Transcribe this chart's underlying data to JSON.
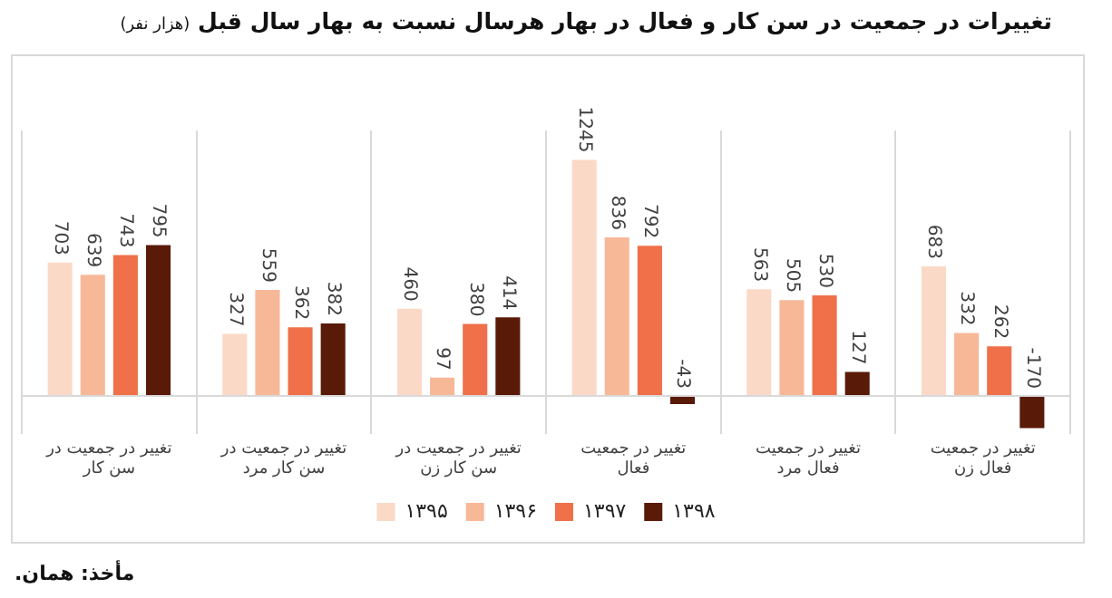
{
  "chart_data": {
    "type": "bar",
    "title": "تغییرات در جمعیت در سن کار و فعال در بهار هرسال نسبت به بهار سال قبل",
    "subtitle": "(هزار نفر)",
    "categories": [
      "تغییر در جمعیت در سن کار",
      "تغییر در جمعیت در سن کار مرد",
      "تغییر در جمعیت در سن کار زن",
      "تغییر در جمعیت فعال",
      "تغییر در جمعیت فعال مرد",
      "تغییر در جمعیت فعال زن"
    ],
    "series": [
      {
        "name": "۱۳۹۵",
        "color": "#fbd9c7",
        "values": [
          703,
          327,
          460,
          1245,
          563,
          683
        ]
      },
      {
        "name": "۱۳۹۶",
        "color": "#f7b898",
        "values": [
          639,
          559,
          97,
          836,
          505,
          332
        ]
      },
      {
        "name": "۱۳۹۷",
        "color": "#ef7049",
        "values": [
          743,
          362,
          380,
          792,
          530,
          262
        ]
      },
      {
        "name": "۱۳۹۸",
        "color": "#5a1a08",
        "values": [
          795,
          382,
          414,
          -43,
          127,
          -170
        ]
      }
    ],
    "data_labels": true,
    "grid": "x",
    "legend": "bottom",
    "annotations": [
      "مأخذ: همان."
    ]
  }
}
